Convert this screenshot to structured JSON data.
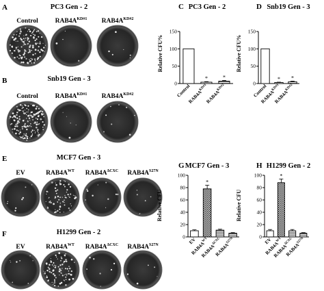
{
  "panels": {
    "A": {
      "letter": "A",
      "title": "PC3 Gen - 2",
      "labels": [
        "Control",
        "RAB4A",
        "RAB4A"
      ],
      "sups": [
        "",
        "KD#1",
        "KD#2"
      ]
    },
    "B": {
      "letter": "B",
      "title": "Snb19 Gen - 3",
      "labels": [
        "Control",
        "RAB4A",
        "RAB4A"
      ],
      "sups": [
        "",
        "KD#1",
        "KD#2"
      ]
    },
    "E": {
      "letter": "E",
      "title": "MCF7  Gen - 3",
      "labels": [
        "EV",
        "RAB4A",
        "RAB4A",
        "RAB4A"
      ],
      "sups": [
        "",
        "WT",
        "ΔCXC",
        "S27N"
      ]
    },
    "F": {
      "letter": "F",
      "title": "H1299 Gen - 2",
      "labels": [
        "EV",
        "RAB4A",
        "RAB4A",
        "RAB4A"
      ],
      "sups": [
        "",
        "WT",
        "ΔCXC",
        "S27N"
      ]
    }
  },
  "chart_data": [
    {
      "letter": "C",
      "type": "bar",
      "title": "PC3 Gen - 2",
      "ylabel": "Relative CFU%",
      "ylim": [
        0,
        150
      ],
      "yticks": [
        0,
        50,
        100,
        150
      ],
      "categories": [
        "Control",
        "RAB4A",
        "RAB4A"
      ],
      "sups": [
        "",
        "KD#1",
        "KD#2"
      ],
      "values": [
        100,
        4,
        7
      ],
      "errors": [
        0,
        1.5,
        2
      ],
      "star": [
        "",
        "*",
        "*"
      ]
    },
    {
      "letter": "D",
      "type": "bar",
      "title": "Snb19 Gen - 3",
      "ylabel": "Relative CFU%",
      "ylim": [
        0,
        150
      ],
      "yticks": [
        0,
        50,
        100,
        150
      ],
      "categories": [
        "Control",
        "RAB4A",
        "RAB4A"
      ],
      "sups": [
        "",
        "KD#1",
        "KD#2"
      ],
      "values": [
        100,
        3,
        5
      ],
      "errors": [
        0,
        1,
        2
      ],
      "star": [
        "",
        "*",
        "*"
      ]
    },
    {
      "letter": "G",
      "type": "bar",
      "title": "MCF7  Gen - 3",
      "ylabel": "Relative CFU",
      "ylim": [
        0,
        100
      ],
      "yticks": [
        0,
        20,
        40,
        60,
        80,
        100
      ],
      "categories": [
        "EV",
        "RAB4A",
        "RAB4A",
        "RAB4A"
      ],
      "sups": [
        "",
        "WT",
        "ΔCXC",
        "S27N"
      ],
      "values": [
        10,
        78,
        11,
        6
      ],
      "errors": [
        1.5,
        6,
        1.5,
        1
      ],
      "star": [
        "",
        "*",
        "",
        ""
      ]
    },
    {
      "letter": "H",
      "type": "bar",
      "title": "H1299 Gen - 2",
      "ylabel": "Relative CFU",
      "ylim": [
        0,
        100
      ],
      "yticks": [
        0,
        20,
        40,
        60,
        80,
        100
      ],
      "categories": [
        "EV",
        "RAB4A",
        "RAB4A",
        "RAB4A"
      ],
      "sups": [
        "",
        "WT",
        "ΔCXC",
        "S27N"
      ],
      "values": [
        10,
        88,
        10,
        6
      ],
      "errors": [
        2,
        6,
        2,
        1
      ],
      "star": [
        "",
        "*",
        "",
        ""
      ]
    }
  ]
}
